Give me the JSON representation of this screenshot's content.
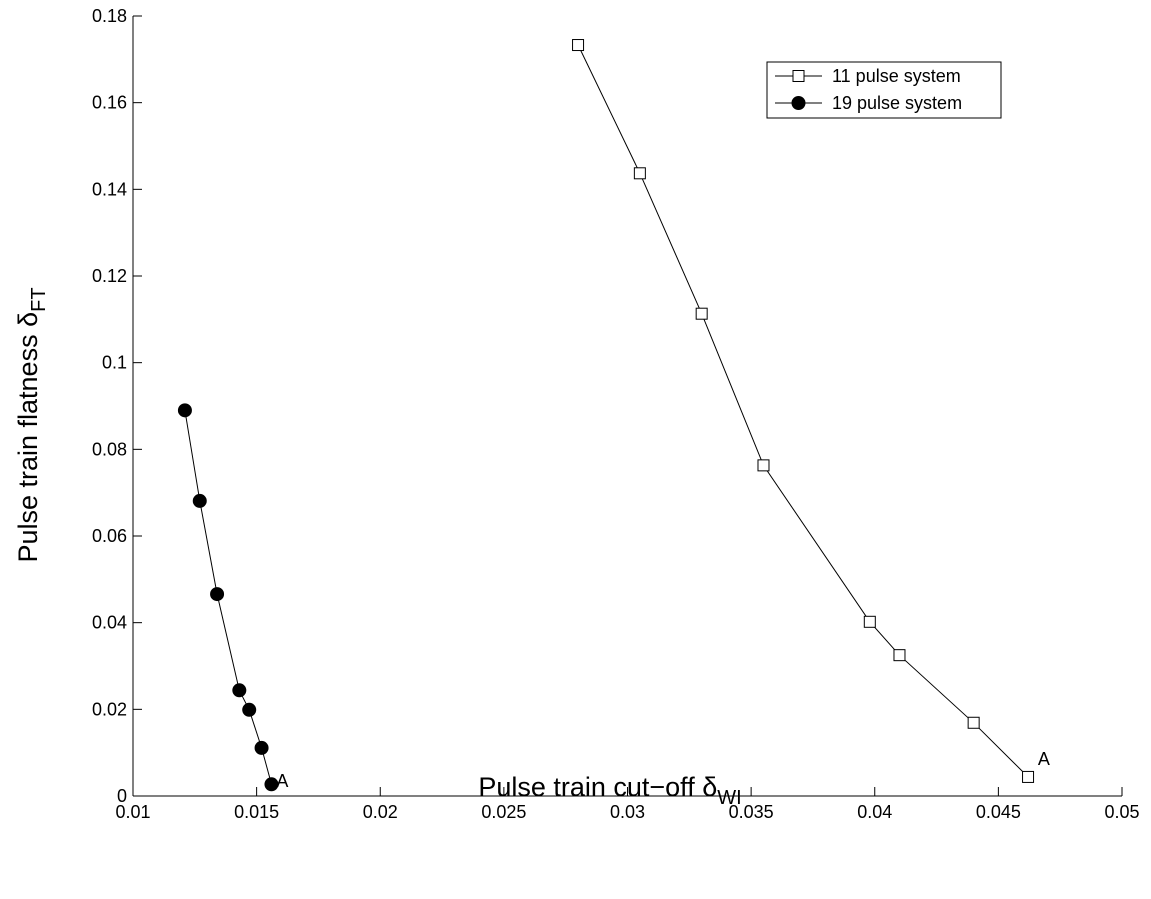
{
  "chart_data": {
    "type": "line",
    "xlabel": "Pulse train cut−off δ",
    "xlabel_sub": "WI",
    "ylabel": "Pulse train flatness δ",
    "ylabel_sub": "FT",
    "xlim": [
      0.01,
      0.05
    ],
    "ylim": [
      0,
      0.18
    ],
    "xticks": [
      "0.01",
      "0.015",
      "0.02",
      "0.025",
      "0.03",
      "0.035",
      "0.04",
      "0.045",
      "0.05"
    ],
    "yticks": [
      "0",
      "0.02",
      "0.04",
      "0.06",
      "0.08",
      "0.1",
      "0.12",
      "0.14",
      "0.16",
      "0.18"
    ],
    "grid": false,
    "legend_position": "top-right",
    "series": [
      {
        "name": "11 pulse system",
        "marker": "square-open",
        "color": "#000000",
        "x": [
          0.028,
          0.0305,
          0.033,
          0.0355,
          0.0398,
          0.041,
          0.044,
          0.0462
        ],
        "y": [
          0.1733,
          0.1437,
          0.1113,
          0.0763,
          0.0402,
          0.0325,
          0.0169,
          0.0044
        ]
      },
      {
        "name": "19 pulse system",
        "marker": "circle-filled",
        "color": "#000000",
        "x": [
          0.0121,
          0.0127,
          0.0134,
          0.0143,
          0.0147,
          0.0152,
          0.0156
        ],
        "y": [
          0.089,
          0.0681,
          0.0466,
          0.0244,
          0.0199,
          0.0111,
          0.0027
        ]
      }
    ],
    "annotations": [
      {
        "text": "A",
        "x": 0.0466,
        "y": 0.0085
      },
      {
        "text": "A",
        "x": 0.0158,
        "y": 0.0035
      }
    ]
  }
}
